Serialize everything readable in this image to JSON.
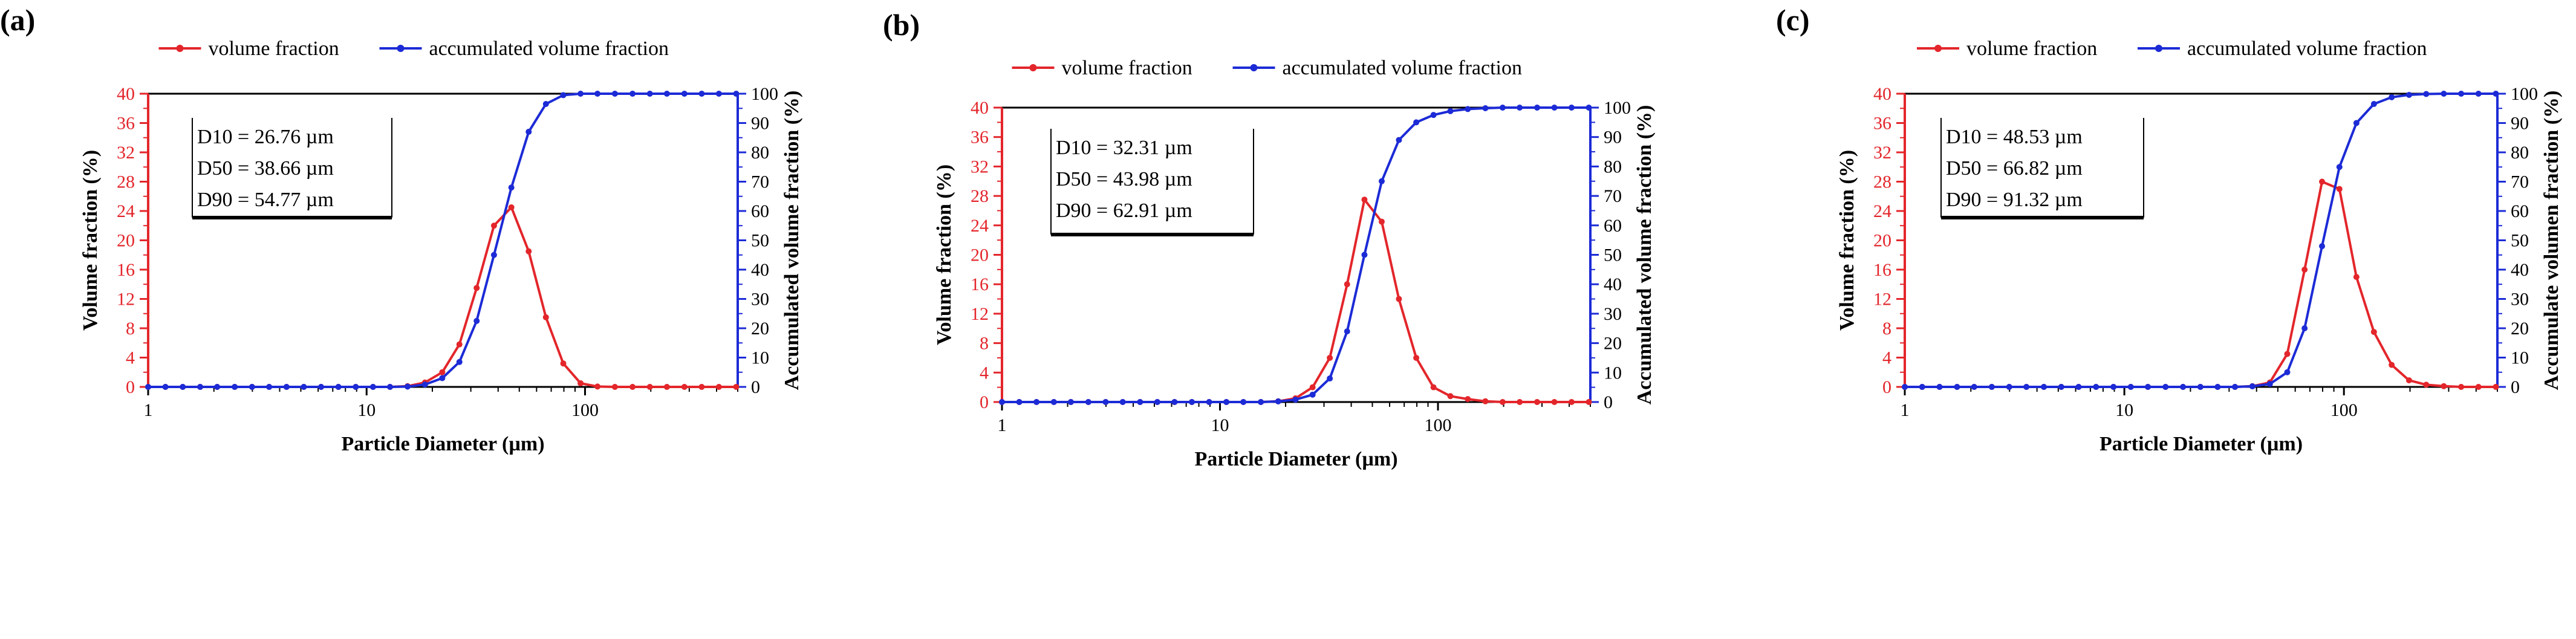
{
  "chart_data": [
    {
      "type": "line",
      "panel_label": "(a)",
      "xlabel": "Particle Diameter (µm)",
      "ylabel": "Volume fraction (%)",
      "y2label": "Accumulated volume fraction (%)",
      "xscale": "log",
      "xlim": [
        1,
        500
      ],
      "x_ticks": [
        "1",
        "10",
        "100"
      ],
      "ylim": [
        0,
        40
      ],
      "y_ticks": [
        "0",
        "4",
        "8",
        "12",
        "16",
        "20",
        "24",
        "28",
        "32",
        "36",
        "40"
      ],
      "y2lim": [
        0,
        100
      ],
      "y2_ticks": [
        "0",
        "10",
        "20",
        "30",
        "40",
        "50",
        "60",
        "70",
        "80",
        "90",
        "100"
      ],
      "legend": [
        "volume fraction",
        "accumulated volume fraction"
      ],
      "legend_position": "top",
      "stats": [
        "D10 = 26.76 µm",
        "D50 = 38.66 µm",
        "D90 = 54.77 µm"
      ],
      "colors": {
        "primary": "#e3262b",
        "secondary": "#1c2bd6"
      },
      "series": [
        {
          "name": "volume fraction",
          "axis": "left",
          "x": [
            1,
            1.2,
            1.44,
            1.73,
            2.07,
            2.49,
            2.99,
            3.58,
            4.3,
            5.16,
            6.19,
            7.43,
            8.92,
            10.7,
            12.8,
            15.4,
            18.5,
            22.2,
            26.6,
            31.9,
            38.3,
            46.0,
            55.2,
            66.2,
            79.5,
            95.4,
            114,
            137,
            165,
            198,
            237,
            285,
            342,
            410,
            492
          ],
          "values": [
            0,
            0,
            0,
            0,
            0,
            0,
            0,
            0,
            0,
            0,
            0,
            0,
            0,
            0,
            0,
            0.1,
            0.6,
            2.0,
            5.8,
            13.5,
            22.0,
            24.5,
            18.5,
            9.5,
            3.2,
            0.5,
            0.05,
            0,
            0,
            0,
            0,
            0,
            0,
            0,
            0
          ]
        },
        {
          "name": "accumulated volume fraction",
          "axis": "right",
          "x": [
            1,
            1.2,
            1.44,
            1.73,
            2.07,
            2.49,
            2.99,
            3.58,
            4.3,
            5.16,
            6.19,
            7.43,
            8.92,
            10.7,
            12.8,
            15.4,
            18.5,
            22.2,
            26.6,
            31.9,
            38.3,
            46.0,
            55.2,
            66.2,
            79.5,
            95.4,
            114,
            137,
            165,
            198,
            237,
            285,
            342,
            410,
            492
          ],
          "values": [
            0,
            0,
            0,
            0,
            0,
            0,
            0,
            0,
            0,
            0,
            0,
            0,
            0,
            0,
            0,
            0.1,
            0.8,
            3.0,
            8.5,
            22.5,
            45.0,
            68.0,
            87.0,
            96.5,
            99.5,
            100,
            100,
            100,
            100,
            100,
            100,
            100,
            100,
            100,
            100
          ]
        }
      ]
    },
    {
      "type": "line",
      "panel_label": "(b)",
      "xlabel": "Particle Diameter (µm)",
      "ylabel": "Volume fraction (%)",
      "y2label": "Accumulated volume fraction (%)",
      "xscale": "log",
      "xlim": [
        1,
        500
      ],
      "x_ticks": [
        "1",
        "10",
        "100"
      ],
      "ylim": [
        0,
        40
      ],
      "y_ticks": [
        "0",
        "4",
        "8",
        "12",
        "16",
        "20",
        "24",
        "28",
        "32",
        "36",
        "40"
      ],
      "y2lim": [
        0,
        100
      ],
      "y2_ticks": [
        "0",
        "10",
        "20",
        "30",
        "40",
        "50",
        "60",
        "70",
        "80",
        "90",
        "100"
      ],
      "legend": [
        "volume fraction",
        "accumulated volume fraction"
      ],
      "legend_position": "top",
      "stats": [
        "D10 = 32.31 µm",
        "D50 = 43.98 µm",
        "D90 = 62.91 µm"
      ],
      "colors": {
        "primary": "#e3262b",
        "secondary": "#1c2bd6"
      },
      "series": [
        {
          "name": "volume fraction",
          "axis": "left",
          "x": [
            1,
            1.2,
            1.44,
            1.73,
            2.07,
            2.49,
            2.99,
            3.58,
            4.3,
            5.16,
            6.19,
            7.43,
            8.92,
            10.7,
            12.8,
            15.4,
            18.5,
            22.2,
            26.6,
            31.9,
            38.3,
            46.0,
            55.2,
            66.2,
            79.5,
            95.4,
            114,
            137,
            165,
            198,
            237,
            285,
            342,
            410,
            492
          ],
          "values": [
            0,
            0,
            0,
            0,
            0,
            0,
            0,
            0,
            0,
            0,
            0,
            0,
            0,
            0,
            0,
            0,
            0.1,
            0.5,
            2.0,
            6.0,
            16.0,
            27.5,
            24.5,
            14.0,
            6.0,
            2.0,
            0.8,
            0.4,
            0.1,
            0,
            0,
            0,
            0,
            0,
            0
          ]
        },
        {
          "name": "accumulated volume fraction",
          "axis": "right",
          "x": [
            1,
            1.2,
            1.44,
            1.73,
            2.07,
            2.49,
            2.99,
            3.58,
            4.3,
            5.16,
            6.19,
            7.43,
            8.92,
            10.7,
            12.8,
            15.4,
            18.5,
            22.2,
            26.6,
            31.9,
            38.3,
            46.0,
            55.2,
            66.2,
            79.5,
            95.4,
            114,
            137,
            165,
            198,
            237,
            285,
            342,
            410,
            492
          ],
          "values": [
            0,
            0,
            0,
            0,
            0,
            0,
            0,
            0,
            0,
            0,
            0,
            0,
            0,
            0,
            0,
            0,
            0.2,
            0.8,
            2.5,
            8.0,
            24.0,
            50.0,
            75.0,
            89.0,
            95.0,
            97.5,
            98.8,
            99.5,
            99.8,
            100,
            100,
            100,
            100,
            100,
            100
          ]
        }
      ]
    },
    {
      "type": "line",
      "panel_label": "(c)",
      "xlabel": "Particle Diameter (µm)",
      "ylabel": "Volume fraction (%)",
      "y2label": "Accumulate volumen fraction (%)",
      "xscale": "log",
      "xlim": [
        1,
        500
      ],
      "x_ticks": [
        "1",
        "10",
        "100"
      ],
      "ylim": [
        0,
        40
      ],
      "y_ticks": [
        "0",
        "4",
        "8",
        "12",
        "16",
        "20",
        "24",
        "28",
        "32",
        "36",
        "40"
      ],
      "y2lim": [
        0,
        100
      ],
      "y2_ticks": [
        "0",
        "10",
        "20",
        "30",
        "40",
        "50",
        "60",
        "70",
        "80",
        "90",
        "100"
      ],
      "legend": [
        "volume fraction",
        "accumulated volume fraction"
      ],
      "legend_position": "top",
      "stats": [
        "D10 = 48.53 µm",
        "D50 = 66.82 µm",
        "D90 = 91.32 µm"
      ],
      "colors": {
        "primary": "#e3262b",
        "secondary": "#1c2bd6"
      },
      "series": [
        {
          "name": "volume fraction",
          "axis": "left",
          "x": [
            1,
            1.2,
            1.44,
            1.73,
            2.07,
            2.49,
            2.99,
            3.58,
            4.3,
            5.16,
            6.19,
            7.43,
            8.92,
            10.7,
            12.8,
            15.4,
            18.5,
            22.2,
            26.6,
            31.9,
            38.3,
            46.0,
            55.2,
            66.2,
            79.5,
            95.4,
            114,
            137,
            165,
            198,
            237,
            285,
            342,
            410,
            492
          ],
          "values": [
            0,
            0,
            0,
            0,
            0,
            0,
            0,
            0,
            0,
            0,
            0,
            0,
            0,
            0,
            0,
            0,
            0,
            0,
            0,
            0,
            0.1,
            0.6,
            4.5,
            16.0,
            28.0,
            27.0,
            15.0,
            7.5,
            3.0,
            0.9,
            0.3,
            0.1,
            0,
            0,
            0
          ]
        },
        {
          "name": "accumulated volume fraction",
          "axis": "right",
          "x": [
            1,
            1.2,
            1.44,
            1.73,
            2.07,
            2.49,
            2.99,
            3.58,
            4.3,
            5.16,
            6.19,
            7.43,
            8.92,
            10.7,
            12.8,
            15.4,
            18.5,
            22.2,
            26.6,
            31.9,
            38.3,
            46.0,
            55.2,
            66.2,
            79.5,
            95.4,
            114,
            137,
            165,
            198,
            237,
            285,
            342,
            410,
            492
          ],
          "values": [
            0,
            0,
            0,
            0,
            0,
            0,
            0,
            0,
            0,
            0,
            0,
            0,
            0,
            0,
            0,
            0,
            0,
            0,
            0,
            0,
            0.2,
            1.0,
            5.0,
            20.0,
            48.0,
            75.0,
            90.0,
            96.5,
            98.8,
            99.6,
            99.9,
            100,
            100,
            100,
            100
          ]
        }
      ]
    }
  ]
}
